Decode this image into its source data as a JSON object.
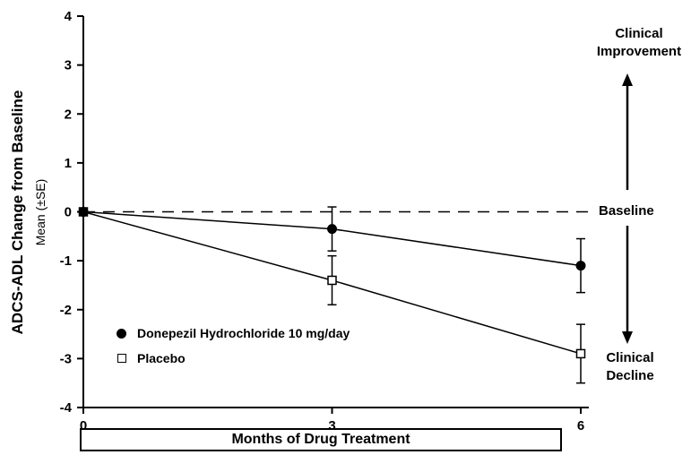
{
  "chart_data": {
    "type": "line",
    "title": "",
    "x": [
      0,
      3,
      6
    ],
    "xticks": [
      "0",
      "3",
      "6"
    ],
    "yticks": [
      4,
      3,
      2,
      1,
      0,
      -1,
      -2,
      -3,
      -4
    ],
    "xlim": [
      0,
      6
    ],
    "ylim": [
      -4,
      4
    ],
    "ylabel": "ADCS-ADL Change from Baseline",
    "ylabel_sub": "Mean (±SE)",
    "xlabel": "Months of Drug Treatment",
    "grid": false,
    "baseline_y": 0,
    "legend_position": "lower-left-inside",
    "series": [
      {
        "name": "Donepezil Hydrochloride 10 mg/day",
        "marker": "filled-circle",
        "values": [
          0,
          -0.35,
          -1.1
        ],
        "se": [
          0,
          0.45,
          0.55
        ]
      },
      {
        "name": "Placebo",
        "marker": "open-square",
        "values": [
          0,
          -1.4,
          -2.9
        ],
        "se": [
          0,
          0.5,
          0.6
        ]
      }
    ],
    "annotations": {
      "clinical_improvement": "Clinical Improvement",
      "baseline_label": "Baseline",
      "clinical_decline": "Clinical Decline"
    },
    "colors": {
      "foreground": "#000000",
      "background": "#ffffff"
    }
  }
}
